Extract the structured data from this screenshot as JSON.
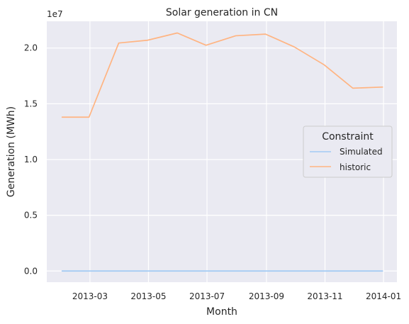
{
  "chart_data": {
    "type": "line",
    "title": "Solar generation in CN",
    "xlabel": "Month",
    "ylabel": "Generation (MWh)",
    "y_multiplier_label": "1e7",
    "y_multiplier": 10000000,
    "grid": true,
    "background_color": "#eaeaf2",
    "grid_color": "#ffffff",
    "x": [
      "2013-01-31",
      "2013-02-28",
      "2013-03-31",
      "2013-04-30",
      "2013-05-31",
      "2013-06-30",
      "2013-07-31",
      "2013-08-31",
      "2013-09-30",
      "2013-10-31",
      "2013-11-30",
      "2013-12-31"
    ],
    "xlim": [
      "2013-01-15",
      "2014-01-15"
    ],
    "x_ticks": [
      "2013-03",
      "2013-05",
      "2013-07",
      "2013-09",
      "2013-11",
      "2014-01"
    ],
    "x_tick_dates": [
      "2013-03-01",
      "2013-05-01",
      "2013-07-01",
      "2013-09-01",
      "2013-11-01",
      "2014-01-01"
    ],
    "ylim": [
      -0.1,
      2.24
    ],
    "y_ticks": [
      0.0,
      0.5,
      1.0,
      1.5,
      2.0
    ],
    "y_tick_labels": [
      "0.0",
      "0.5",
      "1.0",
      "1.5",
      "2.0"
    ],
    "series": [
      {
        "name": "Simulated",
        "color": "#a1c9f4",
        "values": [
          0,
          0,
          0,
          0,
          0,
          0,
          0,
          0,
          0,
          0,
          0,
          0
        ]
      },
      {
        "name": "historic",
        "color": "#ffb482",
        "values": [
          13800000,
          13800000,
          20450000,
          20700000,
          21350000,
          20250000,
          21100000,
          21250000,
          20100000,
          18500000,
          16400000,
          16500000
        ]
      }
    ],
    "legend": {
      "title": "Constraint",
      "position": "center-right"
    }
  }
}
